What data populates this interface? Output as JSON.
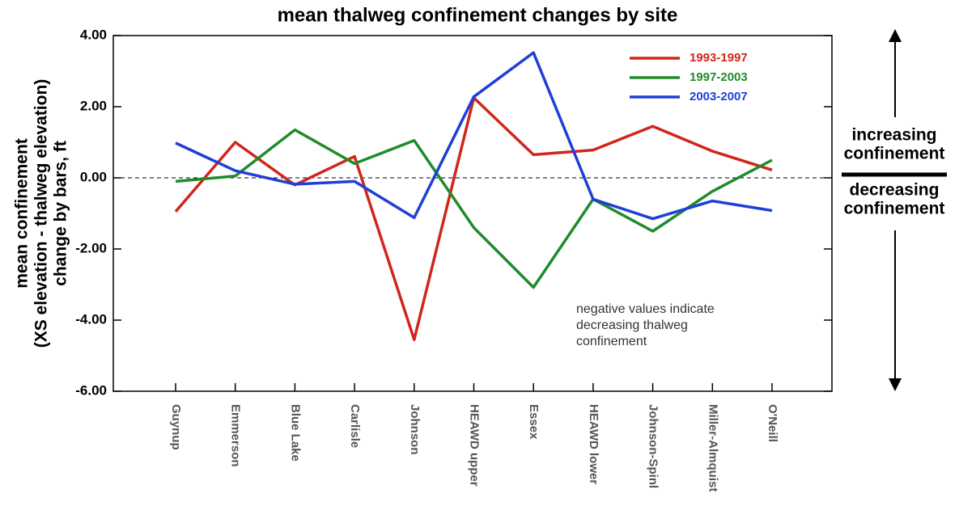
{
  "chart_data": {
    "type": "line",
    "title": "mean thalweg confinement changes by site",
    "ylabel": [
      "mean confinement",
      "(XS elevation - thalweg elevation)",
      "change by bars, ft"
    ],
    "categories": [
      "Guynup",
      "Emmerson",
      "Blue Lake",
      "Carlisle",
      "Johnson",
      "HEAWD upper",
      "Essex",
      "HEAWD lower",
      "Johnson-Spinl",
      "Miller-Almquist",
      "O'Neill"
    ],
    "series": [
      {
        "name": "1993-1997",
        "color": "#d0261c",
        "values": [
          -0.95,
          1.0,
          -0.2,
          0.6,
          -4.55,
          2.25,
          0.65,
          0.78,
          1.45,
          0.75,
          0.22
        ]
      },
      {
        "name": "1997-2003",
        "color": "#1f8c2a",
        "values": [
          -0.1,
          0.05,
          1.35,
          0.4,
          1.05,
          -1.4,
          -3.08,
          -0.6,
          -1.5,
          -0.38,
          0.5
        ]
      },
      {
        "name": "2003-2007",
        "color": "#1f3fd6",
        "values": [
          0.98,
          0.2,
          -0.18,
          -0.1,
          -1.12,
          2.28,
          3.52,
          -0.6,
          -1.15,
          -0.65,
          -0.92
        ]
      }
    ],
    "ylim": [
      -6,
      4
    ],
    "yticks": [
      {
        "value": -6,
        "label": "-6.00"
      },
      {
        "value": -4,
        "label": "-4.00"
      },
      {
        "value": -2,
        "label": "-2.00"
      },
      {
        "value": 0,
        "label": "0.00"
      },
      {
        "value": 2,
        "label": "2.00"
      },
      {
        "value": 4,
        "label": "4.00"
      }
    ],
    "annotation": [
      "negative values indicate",
      "decreasing thalweg",
      "confinement"
    ],
    "side_labels": {
      "up": [
        "increasing",
        "confinement"
      ],
      "down": [
        "decreasing",
        "confinement"
      ]
    },
    "legend": "upper right"
  }
}
